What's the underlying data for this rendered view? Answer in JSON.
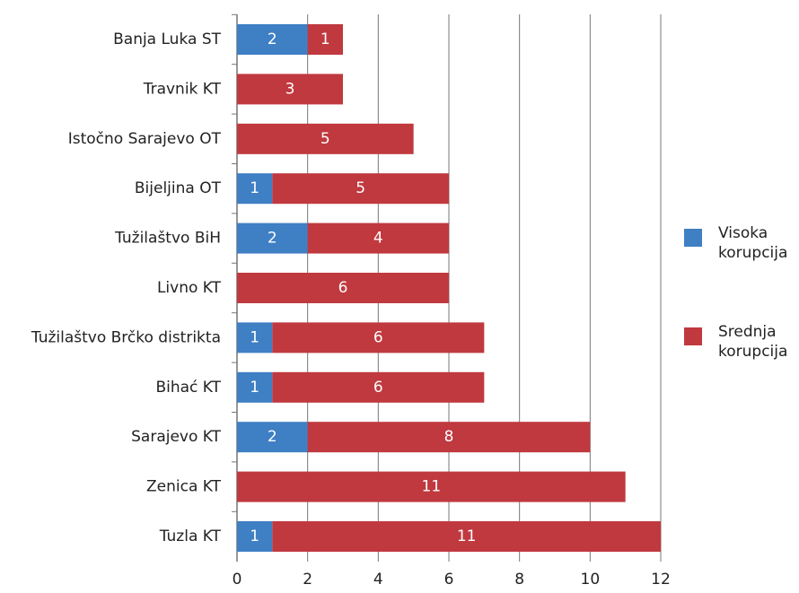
{
  "chart_data": {
    "type": "bar",
    "orientation": "horizontal",
    "stacked": true,
    "categories": [
      "Banja Luka ST",
      "Travnik KT",
      "Istočno Sarajevo OT",
      "Bijeljina OT",
      "Tužilaštvo BiH",
      "Livno KT",
      "Tužilaštvo Brčko distrikta",
      "Bihać KT",
      "Sarajevo KT",
      "Zenica KT",
      "Tuzla KT"
    ],
    "series": [
      {
        "name": "Visoka korupcija",
        "color": "#3f7fc4",
        "values": [
          2,
          null,
          null,
          1,
          2,
          null,
          1,
          1,
          2,
          null,
          1
        ]
      },
      {
        "name": "Srednja korupcija",
        "color": "#c0393f",
        "values": [
          1,
          3,
          5,
          5,
          4,
          6,
          6,
          6,
          8,
          11,
          11
        ]
      }
    ],
    "xlim": [
      0,
      12
    ],
    "xticks": [
      0,
      2,
      4,
      6,
      8,
      10,
      12
    ],
    "grid": true,
    "legend": "right"
  }
}
